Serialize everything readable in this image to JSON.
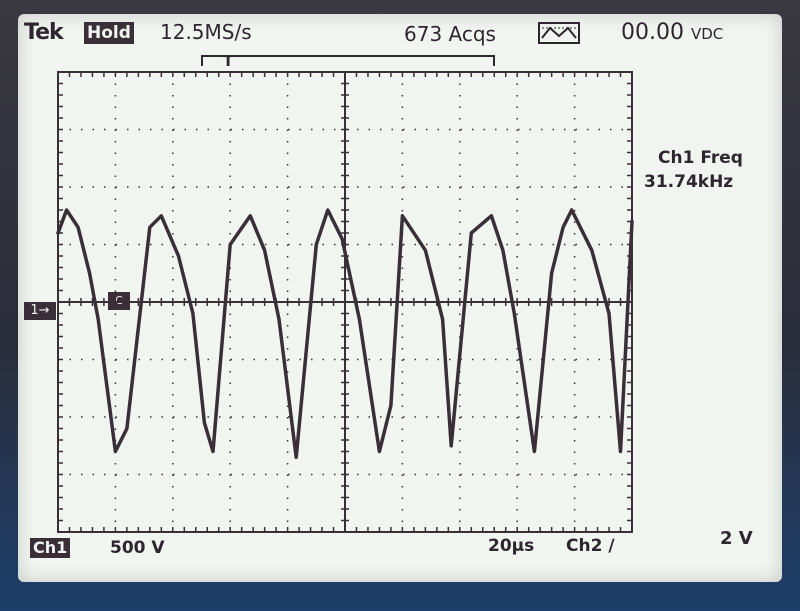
{
  "header": {
    "brand": "Tek",
    "hold": "Hold",
    "sample_rate": "12.5MS/s",
    "acquisitions": "673 Acqs",
    "dc_value": "00.00",
    "dc_unit": "VDC"
  },
  "measurement": {
    "label": "Ch1 Freq",
    "value": "31.74kHz"
  },
  "footer": {
    "ch1_label": "Ch1",
    "ch1_scale": "500 V",
    "timebase": "20µs",
    "trigger": "Ch2 ∕",
    "ch2_scale": "2 V"
  },
  "markers": {
    "ch1_ground": "1→",
    "trigger_marker": "C"
  },
  "icons": {
    "acquisition_mode": "envelope-acq-icon",
    "trigger_position": "trigger-position-icon"
  },
  "colors": {
    "screen": "#f1f5ef",
    "trace": "#3a2e38",
    "grid": "#3a2e38"
  },
  "chart_data": {
    "type": "line",
    "title": "",
    "xlabel": "",
    "ylabel": "",
    "x_divisions": 10,
    "y_divisions": 8,
    "xlim": [
      0,
      10
    ],
    "ylim": [
      -4,
      4
    ],
    "grid": true,
    "series": [
      {
        "x": [
          0,
          0.15,
          0.35,
          0.55,
          0.7,
          1.0,
          1.2,
          1.6,
          1.8,
          2.1,
          2.35,
          2.55,
          2.7,
          3.0,
          3.35,
          3.6,
          3.85,
          4.15,
          4.5,
          4.7,
          4.95,
          5.25,
          5.6,
          5.8,
          6.0,
          6.4,
          6.7,
          6.85,
          7.2,
          7.55,
          7.75,
          7.95,
          8.3,
          8.6,
          8.8,
          8.95,
          9.3,
          9.6,
          9.8,
          10.0
        ],
        "y": [
          1.2,
          1.6,
          1.3,
          0.5,
          -0.3,
          -2.6,
          -2.2,
          1.3,
          1.5,
          0.8,
          -0.2,
          -2.1,
          -2.6,
          1.0,
          1.5,
          0.9,
          -0.3,
          -2.7,
          1.0,
          1.6,
          1.1,
          -0.3,
          -2.6,
          -1.8,
          1.5,
          0.9,
          -0.3,
          -2.5,
          1.2,
          1.5,
          0.9,
          -0.2,
          -2.6,
          0.5,
          1.3,
          1.6,
          0.9,
          -0.2,
          -2.6,
          1.4
        ]
      }
    ]
  }
}
